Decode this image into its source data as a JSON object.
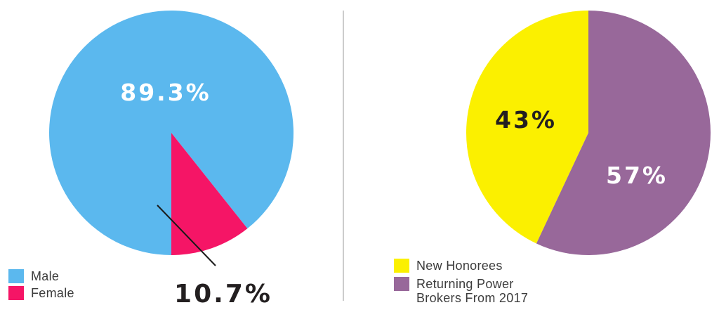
{
  "chart_data": [
    {
      "type": "pie",
      "categories": [
        "Male",
        "Female"
      ],
      "values": [
        89.3,
        10.7
      ],
      "value_labels": [
        "89.3%",
        "10.7%"
      ],
      "colors": [
        "#5BB8EE",
        "#F51566"
      ],
      "legend": "bottom-left"
    },
    {
      "type": "pie",
      "categories": [
        "New Honorees",
        "Returning Power Brokers From 2017"
      ],
      "values": [
        43,
        57
      ],
      "value_labels": [
        "43%",
        "57%"
      ],
      "colors": [
        "#FBF000",
        "#98689A"
      ],
      "legend": "bottom-left"
    }
  ],
  "legend_left": {
    "items": [
      {
        "label": "Male",
        "color": "#5BB8EE"
      },
      {
        "label": "Female",
        "color": "#F51566"
      }
    ]
  },
  "legend_right": {
    "items": [
      {
        "label": "New Honorees",
        "color": "#FBF000"
      },
      {
        "label_line1": "Returning Power",
        "label_line2": "Brokers From 2017",
        "color": "#98689A"
      }
    ]
  },
  "divider_color": "#BBBBBB"
}
